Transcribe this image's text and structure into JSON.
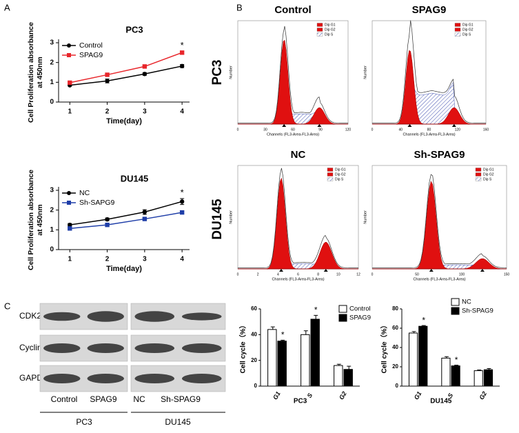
{
  "panel_labels": [
    "A",
    "B",
    "C"
  ],
  "chart_data": [
    {
      "type": "line",
      "title": "PC3",
      "x_label": "Time(day)",
      "y_label": [
        "Cell Proliferation absorbance",
        "at 450nm"
      ],
      "x": [
        1,
        2,
        3,
        4
      ],
      "xlim": [
        0.7,
        4.2
      ],
      "xticks": [
        1,
        2,
        3,
        4
      ],
      "ylim": [
        0,
        3
      ],
      "yticks": [
        0,
        1,
        2,
        3
      ],
      "legend": "upper left",
      "annotations": [
        "*"
      ],
      "series": [
        {
          "name": "Control",
          "color": "#000000",
          "marker": "circle",
          "values": [
            0.85,
            1.07,
            1.42,
            1.82
          ],
          "errors": [
            0.04,
            0.1,
            0.07,
            0.08
          ]
        },
        {
          "name": "SPAG9",
          "color": "#e8262b",
          "marker": "square",
          "values": [
            0.98,
            1.38,
            1.8,
            2.5
          ],
          "errors": [
            0.04,
            0.07,
            0.05,
            0.07
          ]
        }
      ]
    },
    {
      "type": "line",
      "title": "DU145",
      "x_label": "Time(day)",
      "y_label": [
        "Cell Proliferation absorbance",
        "at 450nm"
      ],
      "x": [
        1,
        2,
        3,
        4
      ],
      "xlim": [
        0.7,
        4.2
      ],
      "xticks": [
        1,
        2,
        3,
        4
      ],
      "ylim": [
        0,
        3
      ],
      "yticks": [
        0,
        1,
        2,
        3
      ],
      "legend": "upper left",
      "annotations": [
        "*"
      ],
      "series": [
        {
          "name": "NC",
          "color": "#000000",
          "marker": "circle",
          "values": [
            1.25,
            1.53,
            1.9,
            2.43
          ],
          "errors": [
            0.07,
            0.07,
            0.12,
            0.15
          ]
        },
        {
          "name": "Sh-SAPG9",
          "color": "#1f3ea8",
          "marker": "square",
          "values": [
            1.07,
            1.25,
            1.55,
            1.88
          ],
          "errors": [
            0.04,
            0.04,
            0.07,
            0.07
          ]
        }
      ]
    },
    {
      "type": "bar",
      "x_label": "PC3",
      "y_label": "Cell cycle（%）",
      "categories": [
        "G1",
        "S",
        "G2"
      ],
      "ylim": [
        0,
        60
      ],
      "yticks": [
        0,
        20,
        40,
        60
      ],
      "legend": "upper right",
      "annotations": [
        "*",
        "*"
      ],
      "series": [
        {
          "name": "Control",
          "color": "#ffffff",
          "values": [
            44,
            40,
            16
          ],
          "errors": [
            2,
            3,
            1
          ]
        },
        {
          "name": "SPAG9",
          "color": "#000000",
          "values": [
            35,
            52,
            13
          ],
          "errors": [
            0.7,
            3,
            2.5
          ]
        }
      ]
    },
    {
      "type": "bar",
      "x_label": "DU145",
      "y_label": "Cell cycle（%）",
      "categories": [
        "G1",
        "S",
        "G2"
      ],
      "ylim": [
        0,
        80
      ],
      "yticks": [
        0,
        20,
        40,
        60,
        80
      ],
      "legend": "upper right",
      "annotations": [
        "*",
        "*"
      ],
      "series": [
        {
          "name": "NC",
          "color": "#ffffff",
          "values": [
            55,
            29,
            16
          ],
          "errors": [
            1.5,
            1.5,
            0.7
          ]
        },
        {
          "name": "Sh-SPAG9",
          "color": "#000000",
          "values": [
            62,
            21,
            17
          ],
          "errors": [
            0.8,
            0.7,
            1.2
          ]
        }
      ]
    }
  ],
  "flow": {
    "row_labels": [
      "PC3",
      "DU145"
    ],
    "legend": [
      "Dip G1",
      "Dip G2",
      "Dip S"
    ],
    "x_label": "Channels (FL3-Area-FL3-Area)",
    "y_label": "Number",
    "plots": [
      {
        "title": "Control",
        "xticks": [
          "0",
          "30",
          "60",
          "90",
          "120"
        ]
      },
      {
        "title": "SPAG9",
        "xticks": [
          "0",
          "40",
          "80",
          "120",
          "160"
        ]
      },
      {
        "title": "NC",
        "xticks": [
          "0",
          "2",
          "4",
          "6",
          "8",
          "10",
          "12"
        ]
      },
      {
        "title": "Sh-SPAG9",
        "xticks": [
          "0",
          "50",
          "100",
          "150"
        ]
      }
    ]
  },
  "blot": {
    "proteins": [
      "CDK2",
      "CyclinD1",
      "GAPDH"
    ],
    "lanes": [
      "Control",
      "SPAG9",
      "NC",
      "Sh-SPAG9"
    ],
    "groups": [
      "PC3",
      "DU145"
    ]
  }
}
